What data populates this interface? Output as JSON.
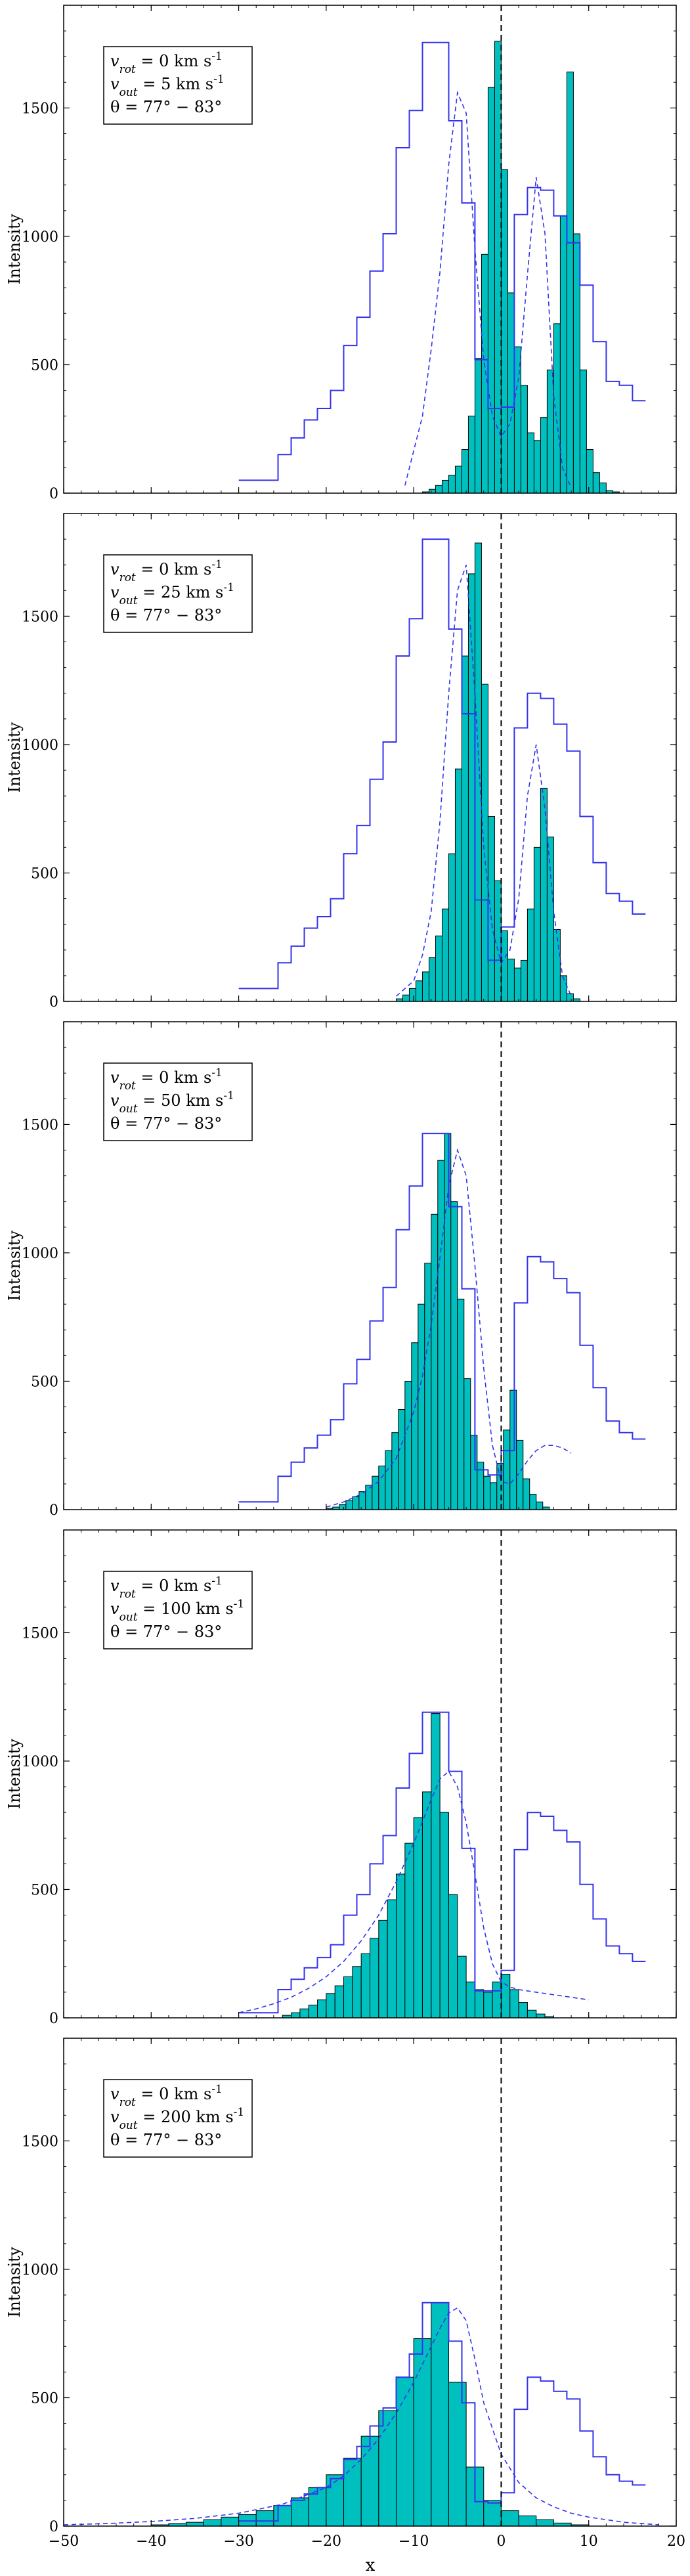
{
  "figure": {
    "x_label": "x",
    "y_label": "Intensity",
    "x_ticks": [
      -50,
      -40,
      -30,
      -20,
      -10,
      0,
      10,
      20
    ],
    "y_ticks": [
      0,
      500,
      1000,
      1500
    ],
    "colors": {
      "fill": "#00BFBF",
      "blue_line": "#3333EE",
      "dashed_fit": "#3333EE",
      "vline": "#000000"
    }
  },
  "chart_data": [
    {
      "type": "histogram",
      "panel": 1,
      "annotation": [
        "v_rot = 0 km s^-1",
        "v_out = 5 km s^-1",
        "θ = 77° − 83°"
      ],
      "xlabel": "",
      "ylabel": "Intensity",
      "xlim": [
        -50,
        20
      ],
      "ylim": [
        0,
        1900
      ],
      "vline_x": 0,
      "blue_step": {
        "x_start": -30,
        "bin_width": 1.5,
        "values": [
          50,
          50,
          50,
          150,
          215,
          285,
          330,
          400,
          575,
          685,
          865,
          1010,
          1345,
          1490,
          1755,
          1755,
          1450,
          1130,
          520,
          330,
          335,
          1085,
          1190,
          1180,
          1080,
          975,
          810,
          590,
          435,
          420,
          360
        ]
      },
      "cyan_hist": {
        "x_start": -9,
        "bin_width": 0.75,
        "values": [
          5,
          15,
          30,
          50,
          70,
          105,
          170,
          300,
          525,
          930,
          1580,
          1760,
          1260,
          780,
          570,
          420,
          235,
          205,
          295,
          480,
          660,
          1080,
          1640,
          1010,
          480,
          170,
          80,
          40,
          10,
          5
        ]
      },
      "dashed_fit": {
        "x": [
          -11,
          -9,
          -8,
          -7,
          -6,
          -5,
          -4,
          -3,
          -2,
          -1,
          0,
          1,
          2,
          3,
          4,
          5,
          6,
          7,
          8
        ],
        "y": [
          30,
          300,
          560,
          860,
          1280,
          1560,
          1480,
          950,
          520,
          300,
          220,
          270,
          450,
          850,
          1230,
          1010,
          380,
          100,
          20
        ]
      }
    },
    {
      "type": "histogram",
      "panel": 2,
      "annotation": [
        "v_rot = 0 km s^-1",
        "v_out = 25 km s^-1",
        "θ = 77° − 83°"
      ],
      "xlabel": "",
      "ylabel": "Intensity",
      "xlim": [
        -50,
        20
      ],
      "ylim": [
        0,
        1900
      ],
      "vline_x": 0,
      "blue_step": {
        "x_start": -30,
        "bin_width": 1.5,
        "values": [
          50,
          50,
          50,
          150,
          215,
          285,
          330,
          400,
          575,
          685,
          865,
          1010,
          1345,
          1490,
          1800,
          1800,
          1450,
          1120,
          395,
          160,
          290,
          1065,
          1200,
          1180,
          1080,
          975,
          720,
          540,
          420,
          390,
          340
        ]
      },
      "cyan_hist": {
        "x_start": -12,
        "bin_width": 0.75,
        "values": [
          10,
          25,
          50,
          80,
          115,
          170,
          255,
          360,
          575,
          905,
          1345,
          1665,
          1785,
          1235,
          720,
          470,
          275,
          165,
          130,
          160,
          360,
          600,
          830,
          640,
          280,
          100,
          30,
          10
        ]
      },
      "dashed_fit": {
        "x": [
          -12,
          -10,
          -9,
          -8,
          -7,
          -6,
          -5,
          -4,
          -3,
          -2,
          -1,
          0,
          1,
          2,
          3,
          4,
          5,
          6,
          7,
          8
        ],
        "y": [
          20,
          80,
          180,
          350,
          700,
          1200,
          1600,
          1700,
          1200,
          600,
          280,
          150,
          200,
          400,
          800,
          1000,
          750,
          350,
          100,
          20
        ]
      }
    },
    {
      "type": "histogram",
      "panel": 3,
      "annotation": [
        "v_rot = 0 km s^-1",
        "v_out = 50 km s^-1",
        "θ = 77° − 83°"
      ],
      "xlabel": "",
      "ylabel": "Intensity",
      "xlim": [
        -50,
        20
      ],
      "ylim": [
        0,
        1900
      ],
      "vline_x": 0,
      "blue_step": {
        "x_start": -30,
        "bin_width": 1.5,
        "values": [
          30,
          30,
          30,
          130,
          185,
          240,
          290,
          350,
          490,
          585,
          735,
          865,
          1090,
          1260,
          1465,
          1465,
          1180,
          860,
          155,
          135,
          230,
          805,
          985,
          965,
          900,
          845,
          640,
          475,
          345,
          300,
          275
        ]
      },
      "cyan_hist": {
        "x_start": -20,
        "bin_width": 0.75,
        "values": [
          5,
          10,
          20,
          35,
          50,
          70,
          95,
          130,
          170,
          230,
          300,
          390,
          500,
          650,
          800,
          960,
          1150,
          1360,
          1465,
          1200,
          820,
          510,
          290,
          185,
          130,
          105,
          180,
          310,
          465,
          270,
          120,
          60,
          30,
          10
        ]
      },
      "dashed_fit": {
        "x": [
          -20,
          -18,
          -16,
          -14,
          -12,
          -10,
          -9,
          -8,
          -7,
          -6,
          -5,
          -4,
          -3,
          -2,
          -1,
          0,
          1,
          2,
          3,
          4,
          5,
          6,
          7,
          8
        ],
        "y": [
          10,
          30,
          60,
          110,
          200,
          380,
          520,
          720,
          980,
          1260,
          1400,
          1300,
          950,
          550,
          250,
          110,
          100,
          140,
          190,
          230,
          250,
          250,
          240,
          220
        ]
      }
    },
    {
      "type": "histogram",
      "panel": 4,
      "annotation": [
        "v_rot = 0 km s^-1",
        "v_out = 100 km s^-1",
        "θ = 77° − 83°"
      ],
      "xlabel": "",
      "ylabel": "Intensity",
      "xlim": [
        -50,
        20
      ],
      "ylim": [
        0,
        1900
      ],
      "vline_x": 0,
      "blue_step": {
        "x_start": -30,
        "bin_width": 1.5,
        "values": [
          20,
          20,
          20,
          110,
          150,
          195,
          235,
          285,
          400,
          480,
          600,
          710,
          895,
          1030,
          1190,
          1190,
          960,
          660,
          105,
          105,
          185,
          655,
          800,
          785,
          730,
          685,
          520,
          385,
          280,
          250,
          220
        ]
      },
      "cyan_hist": {
        "x_start": -25,
        "bin_width": 1,
        "values": [
          10,
          20,
          35,
          50,
          70,
          95,
          125,
          160,
          200,
          250,
          310,
          380,
          460,
          560,
          680,
          780,
          880,
          1185,
          800,
          480,
          240,
          140,
          110,
          100,
          140,
          170,
          110,
          60,
          30,
          15,
          5,
          0,
          0,
          0
        ]
      },
      "dashed_fit": {
        "x": [
          -30,
          -28,
          -26,
          -24,
          -22,
          -20,
          -18,
          -16,
          -14,
          -12,
          -10,
          -8,
          -7,
          -6,
          -5,
          -4,
          -3,
          -2,
          -1,
          0,
          1,
          2,
          4,
          6,
          8,
          10
        ],
        "y": [
          20,
          35,
          55,
          80,
          115,
          160,
          220,
          300,
          400,
          530,
          680,
          850,
          930,
          960,
          900,
          760,
          560,
          350,
          210,
          140,
          120,
          110,
          100,
          90,
          80,
          70
        ]
      }
    },
    {
      "type": "histogram",
      "panel": 5,
      "annotation": [
        "v_rot = 0 km s^-1",
        "v_out = 200 km s^-1",
        "θ = 77° − 83°"
      ],
      "xlabel": "x",
      "ylabel": "Intensity",
      "xlim": [
        -50,
        20
      ],
      "ylim": [
        0,
        1900
      ],
      "vline_x": 0,
      "blue_step": {
        "x_start": -30,
        "bin_width": 1.5,
        "values": [
          20,
          20,
          20,
          80,
          100,
          125,
          150,
          185,
          260,
          310,
          390,
          460,
          580,
          670,
          870,
          870,
          720,
          480,
          95,
          90,
          130,
          455,
          580,
          565,
          525,
          495,
          370,
          270,
          200,
          175,
          160
        ]
      },
      "cyan_hist": {
        "x_start": -40,
        "bin_width": 2,
        "values": [
          5,
          10,
          15,
          25,
          35,
          45,
          60,
          80,
          110,
          150,
          200,
          265,
          350,
          450,
          580,
          730,
          870,
          560,
          230,
          100,
          60,
          40,
          25,
          12,
          5,
          0
        ]
      },
      "dashed_fit": {
        "x": [
          -50,
          -45,
          -40,
          -35,
          -30,
          -25,
          -20,
          -18,
          -16,
          -14,
          -12,
          -10,
          -9,
          -8,
          -7,
          -6,
          -5,
          -4,
          -3,
          -2,
          0,
          2,
          4,
          6,
          8,
          10,
          14,
          18
        ],
        "y": [
          5,
          10,
          18,
          30,
          50,
          85,
          150,
          195,
          260,
          340,
          440,
          560,
          630,
          700,
          770,
          830,
          850,
          800,
          650,
          480,
          280,
          170,
          110,
          75,
          50,
          35,
          15,
          5
        ]
      }
    }
  ]
}
